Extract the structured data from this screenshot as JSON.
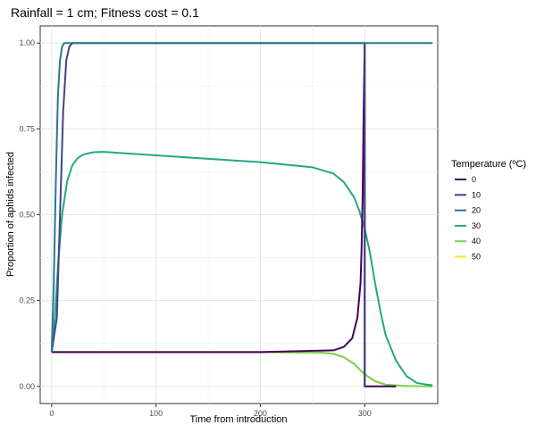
{
  "chart_data": {
    "type": "line",
    "title": "Rainfall = 1 cm; Fitness cost = 0.1",
    "xlabel": "Time from introduction",
    "ylabel": "Proportion of aphids infected",
    "xlim": [
      -11,
      370
    ],
    "ylim": [
      -0.05,
      1.05
    ],
    "x_ticks": [
      0,
      100,
      200,
      300
    ],
    "y_ticks": [
      0.0,
      0.25,
      0.5,
      0.75,
      1.0
    ],
    "y_tick_labels": [
      "0.00",
      "0.25",
      "0.50",
      "0.75",
      "1.00"
    ],
    "grid": true,
    "legend": {
      "title": "Temperature (ºC)",
      "position": "right"
    },
    "series": [
      {
        "name": "0",
        "color": "#440154",
        "x": [
          0,
          20,
          100,
          200,
          270,
          280,
          288,
          293,
          296,
          297,
          298,
          299,
          300,
          300,
          310,
          320,
          330
        ],
        "y": [
          0.1,
          0.1,
          0.1,
          0.1,
          0.105,
          0.115,
          0.14,
          0.2,
          0.3,
          0.4,
          0.55,
          0.8,
          1.0,
          0.0,
          0.0,
          0.0,
          0.0
        ]
      },
      {
        "name": "10",
        "color": "#414487",
        "x": [
          0,
          5,
          8,
          11,
          14,
          17,
          20,
          25,
          50,
          100,
          200,
          299,
          300,
          300,
          300
        ],
        "y": [
          0.1,
          0.2,
          0.5,
          0.8,
          0.95,
          0.99,
          1.0,
          1.0,
          1.0,
          1.0,
          1.0,
          1.0,
          1.0,
          0.0,
          0.0
        ]
      },
      {
        "name": "20",
        "color": "#2A788E",
        "x": [
          0,
          2,
          4,
          6,
          8,
          10,
          12,
          15,
          50,
          100,
          200,
          300,
          365
        ],
        "y": [
          0.1,
          0.3,
          0.6,
          0.85,
          0.95,
          0.99,
          1.0,
          1.0,
          1.0,
          1.0,
          1.0,
          1.0,
          1.0
        ]
      },
      {
        "name": "30",
        "color": "#22A884",
        "x": [
          0,
          3,
          6,
          10,
          15,
          20,
          25,
          30,
          40,
          50,
          100,
          150,
          200,
          250,
          270,
          280,
          290,
          295,
          300,
          305,
          310,
          315,
          320,
          330,
          340,
          350,
          360,
          365
        ],
        "y": [
          0.1,
          0.2,
          0.35,
          0.5,
          0.6,
          0.645,
          0.665,
          0.675,
          0.682,
          0.683,
          0.673,
          0.663,
          0.653,
          0.638,
          0.62,
          0.595,
          0.55,
          0.51,
          0.46,
          0.39,
          0.3,
          0.22,
          0.15,
          0.075,
          0.03,
          0.01,
          0.005,
          0.003
        ]
      },
      {
        "name": "40",
        "color": "#7AD151",
        "x": [
          0,
          100,
          200,
          260,
          270,
          280,
          290,
          300,
          310,
          320,
          340,
          365
        ],
        "y": [
          0.1,
          0.1,
          0.1,
          0.098,
          0.095,
          0.085,
          0.065,
          0.035,
          0.015,
          0.005,
          0.001,
          0.0
        ]
      },
      {
        "name": "50",
        "color": "#FDE725",
        "x": [
          0,
          100,
          200,
          260,
          270,
          280,
          290,
          300,
          310,
          320,
          340,
          365
        ],
        "y": [
          0.1,
          0.1,
          0.1,
          0.098,
          0.095,
          0.085,
          0.065,
          0.035,
          0.015,
          0.005,
          0.001,
          0.0
        ]
      }
    ]
  }
}
